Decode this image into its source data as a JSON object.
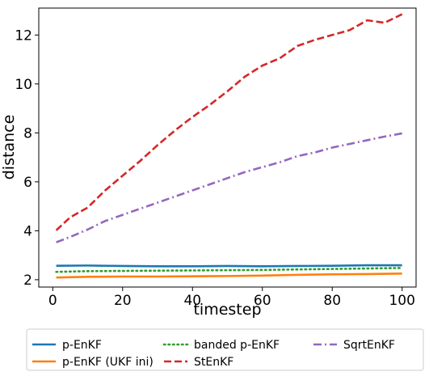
{
  "chart_data": {
    "type": "line",
    "title": "",
    "xlabel": "timestep",
    "ylabel": "distance",
    "xlim": [
      -4,
      104
    ],
    "ylim": [
      1.7,
      13.1
    ],
    "xticks": [
      0,
      20,
      40,
      60,
      80,
      100
    ],
    "yticks": [
      2,
      4,
      6,
      8,
      10,
      12
    ],
    "grid": false,
    "legend_position": "bottom, outside plot, 3 columns",
    "series": [
      {
        "name": "p-EnKF",
        "color": "#1f77b4",
        "linestyle": "solid",
        "x": [
          1,
          10,
          20,
          30,
          40,
          50,
          60,
          70,
          80,
          90,
          100
        ],
        "values": [
          2.57,
          2.58,
          2.56,
          2.55,
          2.55,
          2.56,
          2.55,
          2.56,
          2.57,
          2.59,
          2.59
        ]
      },
      {
        "name": "p-EnKF (UKF ini)",
        "color": "#ff7f0e",
        "linestyle": "solid",
        "x": [
          1,
          10,
          20,
          30,
          40,
          50,
          60,
          70,
          80,
          90,
          100
        ],
        "values": [
          2.09,
          2.12,
          2.13,
          2.13,
          2.14,
          2.15,
          2.17,
          2.2,
          2.22,
          2.23,
          2.25
        ]
      },
      {
        "name": "banded p-EnKF",
        "color": "#2ca02c",
        "linestyle": "dotted",
        "x": [
          1,
          10,
          20,
          30,
          40,
          50,
          60,
          70,
          80,
          90,
          100
        ],
        "values": [
          2.32,
          2.35,
          2.36,
          2.37,
          2.38,
          2.39,
          2.4,
          2.42,
          2.44,
          2.46,
          2.48
        ]
      },
      {
        "name": "StEnKF",
        "color": "#d62728",
        "linestyle": "dashed",
        "x": [
          1,
          5,
          10,
          15,
          20,
          25,
          30,
          35,
          40,
          45,
          50,
          55,
          60,
          65,
          70,
          75,
          80,
          85,
          90,
          95,
          100
        ],
        "values": [
          4.02,
          4.55,
          4.95,
          5.65,
          6.25,
          6.85,
          7.5,
          8.1,
          8.65,
          9.15,
          9.7,
          10.3,
          10.75,
          11.05,
          11.55,
          11.8,
          12.0,
          12.2,
          12.6,
          12.5,
          12.85
        ]
      },
      {
        "name": "SqrtEnKF",
        "color": "#9467bd",
        "linestyle": "dashdot",
        "x": [
          1,
          5,
          10,
          15,
          20,
          25,
          30,
          35,
          40,
          45,
          50,
          55,
          60,
          65,
          70,
          75,
          80,
          85,
          90,
          95,
          100
        ],
        "values": [
          3.53,
          3.75,
          4.05,
          4.4,
          4.65,
          4.9,
          5.15,
          5.4,
          5.65,
          5.9,
          6.15,
          6.4,
          6.6,
          6.8,
          7.05,
          7.2,
          7.4,
          7.55,
          7.7,
          7.85,
          7.98
        ]
      }
    ]
  }
}
